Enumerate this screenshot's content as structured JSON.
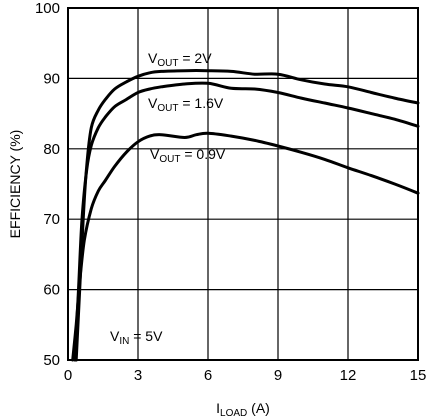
{
  "chart_data": {
    "type": "line",
    "title": "",
    "xlabel": {
      "main": "I",
      "sub": "LOAD",
      "unit": " (A)"
    },
    "ylabel": "EFFICIENCY (%)",
    "xlim": [
      0,
      15
    ],
    "ylim": [
      50,
      100
    ],
    "xticks": [
      0,
      3,
      6,
      9,
      12,
      15
    ],
    "yticks": [
      50,
      60,
      70,
      80,
      90,
      100
    ],
    "grid": true,
    "series": [
      {
        "name": "VOUT = 2V",
        "label": {
          "main": "V",
          "sub": "OUT",
          "rest": " = 2V"
        },
        "x": [
          0.35,
          0.5,
          0.65,
          0.8,
          1.0,
          1.3,
          1.6,
          2.0,
          2.5,
          3.0,
          3.5,
          4.0,
          5.0,
          6.0,
          7.0,
          8.0,
          9.0,
          10.0,
          11.0,
          12.0,
          13.0,
          14.0,
          15.0
        ],
        "y": [
          50,
          60,
          70,
          77.5,
          83.0,
          85.5,
          87.0,
          88.5,
          89.5,
          90.3,
          90.8,
          91.0,
          91.1,
          91.1,
          91.0,
          90.6,
          90.6,
          89.8,
          89.2,
          88.8,
          88.0,
          87.2,
          86.5
        ]
      },
      {
        "name": "VOUT = 1.6V",
        "label": {
          "main": "V",
          "sub": "OUT",
          "rest": " = 1.6V"
        },
        "x": [
          0.3,
          0.45,
          0.6,
          0.8,
          1.0,
          1.3,
          1.6,
          2.0,
          2.5,
          3.0,
          3.5,
          4.0,
          5.0,
          6.0,
          7.0,
          8.0,
          9.0,
          10.0,
          11.0,
          12.0,
          13.0,
          14.0,
          15.0
        ],
        "y": [
          50,
          60,
          70,
          77.0,
          80.5,
          83.0,
          84.5,
          86.0,
          87.0,
          88.0,
          88.5,
          88.8,
          89.2,
          89.3,
          88.6,
          88.5,
          88.0,
          87.2,
          86.5,
          85.8,
          85.0,
          84.2,
          83.2
        ]
      },
      {
        "name": "VOUT = 0.9V",
        "label": {
          "main": "V",
          "sub": "OUT",
          "rest": " = 0.9V"
        },
        "x": [
          0.2,
          0.35,
          0.5,
          0.7,
          1.0,
          1.3,
          1.6,
          2.0,
          2.5,
          3.0,
          3.5,
          4.0,
          5.0,
          5.5,
          6.0,
          7.0,
          8.0,
          9.0,
          10.0,
          11.0,
          12.0,
          13.0,
          14.0,
          15.0
        ],
        "y": [
          50,
          55,
          61,
          67,
          71.5,
          74.0,
          75.5,
          77.5,
          79.5,
          81.0,
          81.8,
          82.0,
          81.6,
          82.0,
          82.2,
          81.8,
          81.2,
          80.4,
          79.5,
          78.5,
          77.3,
          76.2,
          75.0,
          73.7
        ]
      }
    ],
    "annotations": [
      {
        "main": "V",
        "sub": "IN",
        "rest": " = 5V"
      }
    ]
  }
}
